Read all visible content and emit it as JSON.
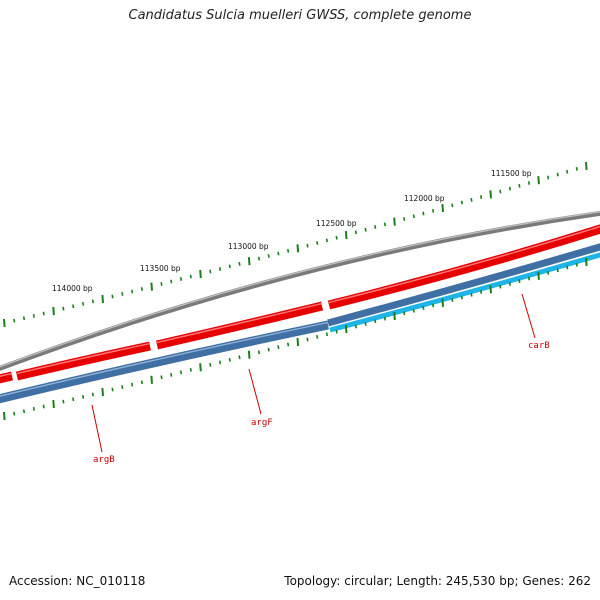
{
  "title": "Candidatus Sulcia muelleri GWSS, complete genome",
  "footer": {
    "accession": "Accession: NC_010118",
    "summary": "Topology: circular; Length: 245,530 bp; Genes: 262"
  },
  "colors": {
    "backbone": "#7a7a7a",
    "forward_genes": "#e60000",
    "reverse_genes": "#3f6fa3",
    "reverse_genes_alt": "#1fb4e8",
    "ticks": "#1a7f1a",
    "gene_label": "#cc0000"
  },
  "scale_labels": [
    "111500 bp",
    "112000 bp",
    "112500 bp",
    "113000 bp",
    "113500 bp",
    "114000 bp"
  ],
  "genes": [
    {
      "name": "carB",
      "strand": "reverse"
    },
    {
      "name": "argF",
      "strand": "reverse"
    },
    {
      "name": "argB",
      "strand": "reverse"
    }
  ]
}
